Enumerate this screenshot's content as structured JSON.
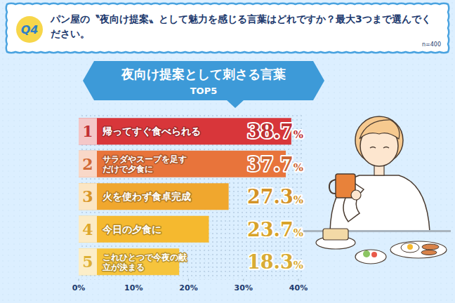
{
  "header": {
    "badge": "Q4",
    "question": "パン屋の〝夜向け提案〟として魅力を感じる言葉はどれですか？最大3つまで選んでください。",
    "n": "n=400"
  },
  "chart_data": {
    "type": "bar",
    "orientation": "horizontal",
    "title": "夜向け提案として刺さる言葉",
    "subtitle": "TOP5",
    "ranks": [
      1,
      2,
      3,
      4,
      5
    ],
    "categories": [
      "帰ってすぐ食べられる",
      "サラダやスープを足すだけで夕食に",
      "火を使わず食卓完成",
      "今日の夕食に",
      "これひとつで今夜の献立が決まる"
    ],
    "values": [
      38.7,
      37.7,
      27.3,
      23.7,
      18.3
    ],
    "value_labels": [
      "38.7%",
      "37.7%",
      "27.3%",
      "23.7%",
      "18.3%"
    ],
    "colors": [
      "#d8363a",
      "#e8743b",
      "#f0a72e",
      "#f5b92f",
      "#f6c43c"
    ],
    "xlim": [
      0,
      40
    ],
    "xticks": [
      {
        "value": 0,
        "label": "0%"
      },
      {
        "value": 10,
        "label": "10%"
      },
      {
        "value": 20,
        "label": "20%"
      },
      {
        "value": 30,
        "label": "30%"
      },
      {
        "value": 40,
        "label": "40%"
      }
    ],
    "data_labels": true,
    "grid": false
  }
}
